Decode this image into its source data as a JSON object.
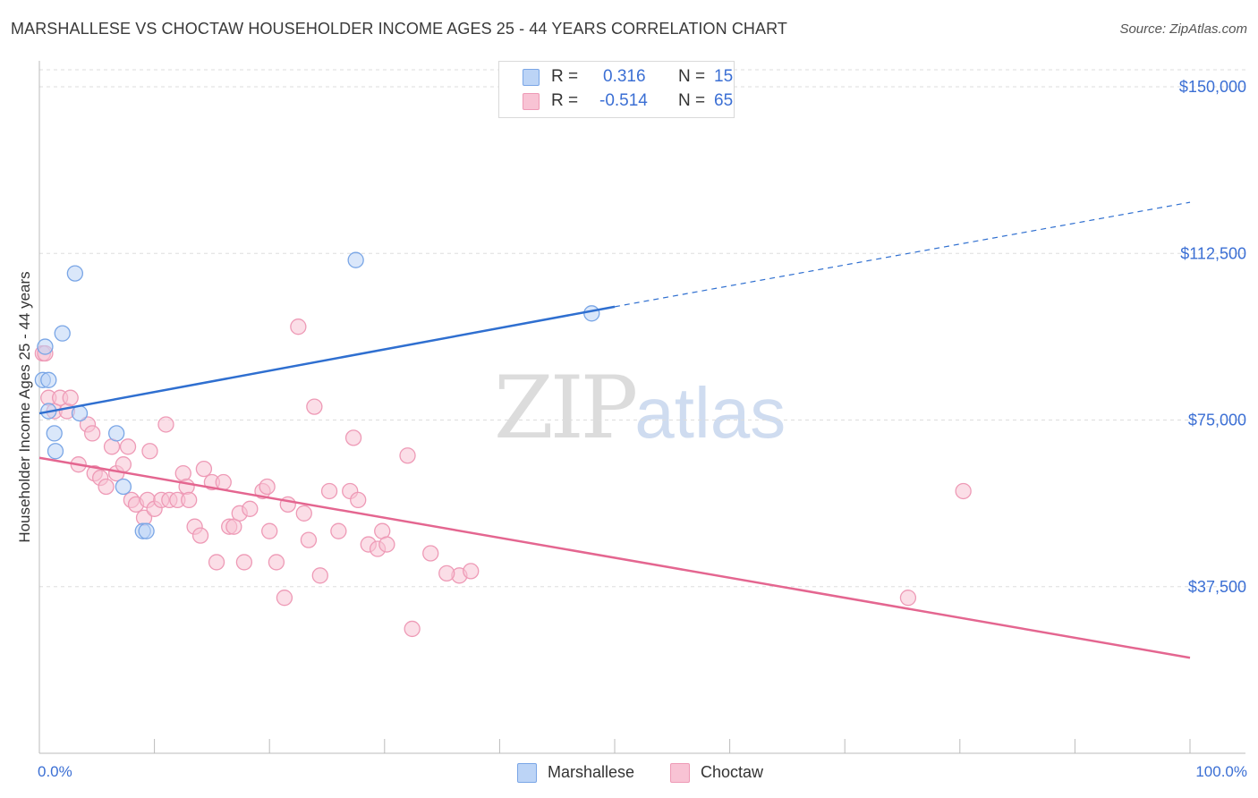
{
  "title": "MARSHALLESE VS CHOCTAW HOUSEHOLDER INCOME AGES 25 - 44 YEARS CORRELATION CHART",
  "source": "Source: ZipAtlas.com",
  "watermark": {
    "zip": "ZIP",
    "atlas": "atlas"
  },
  "legend": {
    "r_label": "R =",
    "n_label": "N =",
    "rows": [
      {
        "series": "Marshallese",
        "r": "0.316",
        "n": "15"
      },
      {
        "series": "Choctaw",
        "r": "-0.514",
        "n": "65"
      }
    ]
  },
  "colors": {
    "marshallese_fill": "#bcd4f6",
    "marshallese_stroke": "#7aa6e6",
    "marshallese_line": "#2f6fd0",
    "choctaw_fill": "#f8c3d4",
    "choctaw_stroke": "#ee9ab6",
    "choctaw_line": "#e46690",
    "tick_label": "#3b6fd4",
    "grid": "#dddddd"
  },
  "chart_data": {
    "type": "scatter",
    "title": "MARSHALLESE VS CHOCTAW HOUSEHOLDER INCOME AGES 25 - 44 YEARS CORRELATION CHART",
    "xlabel": "",
    "ylabel": "Householder Income Ages 25 - 44 years",
    "x_tick_labels": [
      "0.0%",
      "100.0%"
    ],
    "y_ticks": [
      37500,
      75000,
      112500,
      150000
    ],
    "y_tick_labels": [
      "$37,500",
      "$75,000",
      "$112,500",
      "$150,000"
    ],
    "xlim": [
      0,
      100
    ],
    "ylim": [
      0,
      155000
    ],
    "grid": true,
    "legend_position": "top-center",
    "series": [
      {
        "name": "Marshallese",
        "r": 0.316,
        "n": 15,
        "points": [
          [
            0.5,
            91500
          ],
          [
            0.3,
            84000
          ],
          [
            0.8,
            84000
          ],
          [
            2.0,
            94500
          ],
          [
            3.1,
            108000
          ],
          [
            0.8,
            77000
          ],
          [
            1.3,
            72000
          ],
          [
            1.4,
            68000
          ],
          [
            3.5,
            76500
          ],
          [
            6.7,
            72000
          ],
          [
            7.3,
            60000
          ],
          [
            9.0,
            50000
          ],
          [
            9.3,
            50000
          ],
          [
            27.5,
            111000
          ],
          [
            48.0,
            99000
          ]
        ],
        "trend": {
          "x0": 0,
          "y0": 76500,
          "x1": 50,
          "y1": 100500,
          "dashed_to_x": 100,
          "dashed_to_y": 124000
        }
      },
      {
        "name": "Choctaw",
        "r": -0.514,
        "n": 65,
        "points": [
          [
            0.3,
            90000
          ],
          [
            0.5,
            90000
          ],
          [
            0.8,
            80000
          ],
          [
            1.3,
            77000
          ],
          [
            1.8,
            80000
          ],
          [
            2.4,
            77000
          ],
          [
            2.7,
            80000
          ],
          [
            3.4,
            65000
          ],
          [
            4.2,
            74000
          ],
          [
            4.6,
            72000
          ],
          [
            4.8,
            63000
          ],
          [
            5.3,
            62000
          ],
          [
            5.8,
            60000
          ],
          [
            6.3,
            69000
          ],
          [
            6.7,
            63000
          ],
          [
            7.3,
            65000
          ],
          [
            7.7,
            69000
          ],
          [
            8.0,
            57000
          ],
          [
            8.4,
            56000
          ],
          [
            9.1,
            53000
          ],
          [
            9.4,
            57000
          ],
          [
            9.6,
            68000
          ],
          [
            10.0,
            55000
          ],
          [
            10.6,
            57000
          ],
          [
            11.0,
            74000
          ],
          [
            11.3,
            57000
          ],
          [
            12.0,
            57000
          ],
          [
            12.5,
            63000
          ],
          [
            12.8,
            60000
          ],
          [
            13.0,
            57000
          ],
          [
            13.5,
            51000
          ],
          [
            14.0,
            49000
          ],
          [
            14.3,
            64000
          ],
          [
            15.0,
            61000
          ],
          [
            15.4,
            43000
          ],
          [
            16.0,
            61000
          ],
          [
            16.5,
            51000
          ],
          [
            16.9,
            51000
          ],
          [
            17.4,
            54000
          ],
          [
            17.8,
            43000
          ],
          [
            18.3,
            55000
          ],
          [
            19.4,
            59000
          ],
          [
            19.8,
            60000
          ],
          [
            20.0,
            50000
          ],
          [
            20.6,
            43000
          ],
          [
            21.3,
            35000
          ],
          [
            21.6,
            56000
          ],
          [
            22.5,
            96000
          ],
          [
            23.0,
            54000
          ],
          [
            23.4,
            48000
          ],
          [
            23.9,
            78000
          ],
          [
            24.4,
            40000
          ],
          [
            25.2,
            59000
          ],
          [
            26.0,
            50000
          ],
          [
            27.0,
            59000
          ],
          [
            27.3,
            71000
          ],
          [
            27.7,
            57000
          ],
          [
            28.6,
            47000
          ],
          [
            29.4,
            46000
          ],
          [
            29.8,
            50000
          ],
          [
            30.2,
            47000
          ],
          [
            32.0,
            67000
          ],
          [
            32.4,
            28000
          ],
          [
            34.0,
            45000
          ],
          [
            36.5,
            40000
          ]
        ],
        "trend": {
          "x0": 0,
          "y0": 66500,
          "x1": 100,
          "y1": 21500
        }
      }
    ]
  },
  "extra_choctaw_points": [
    [
      37.5,
      41000
    ],
    [
      75.5,
      35000
    ],
    [
      80.3,
      59000
    ],
    [
      35.4,
      40500
    ]
  ]
}
